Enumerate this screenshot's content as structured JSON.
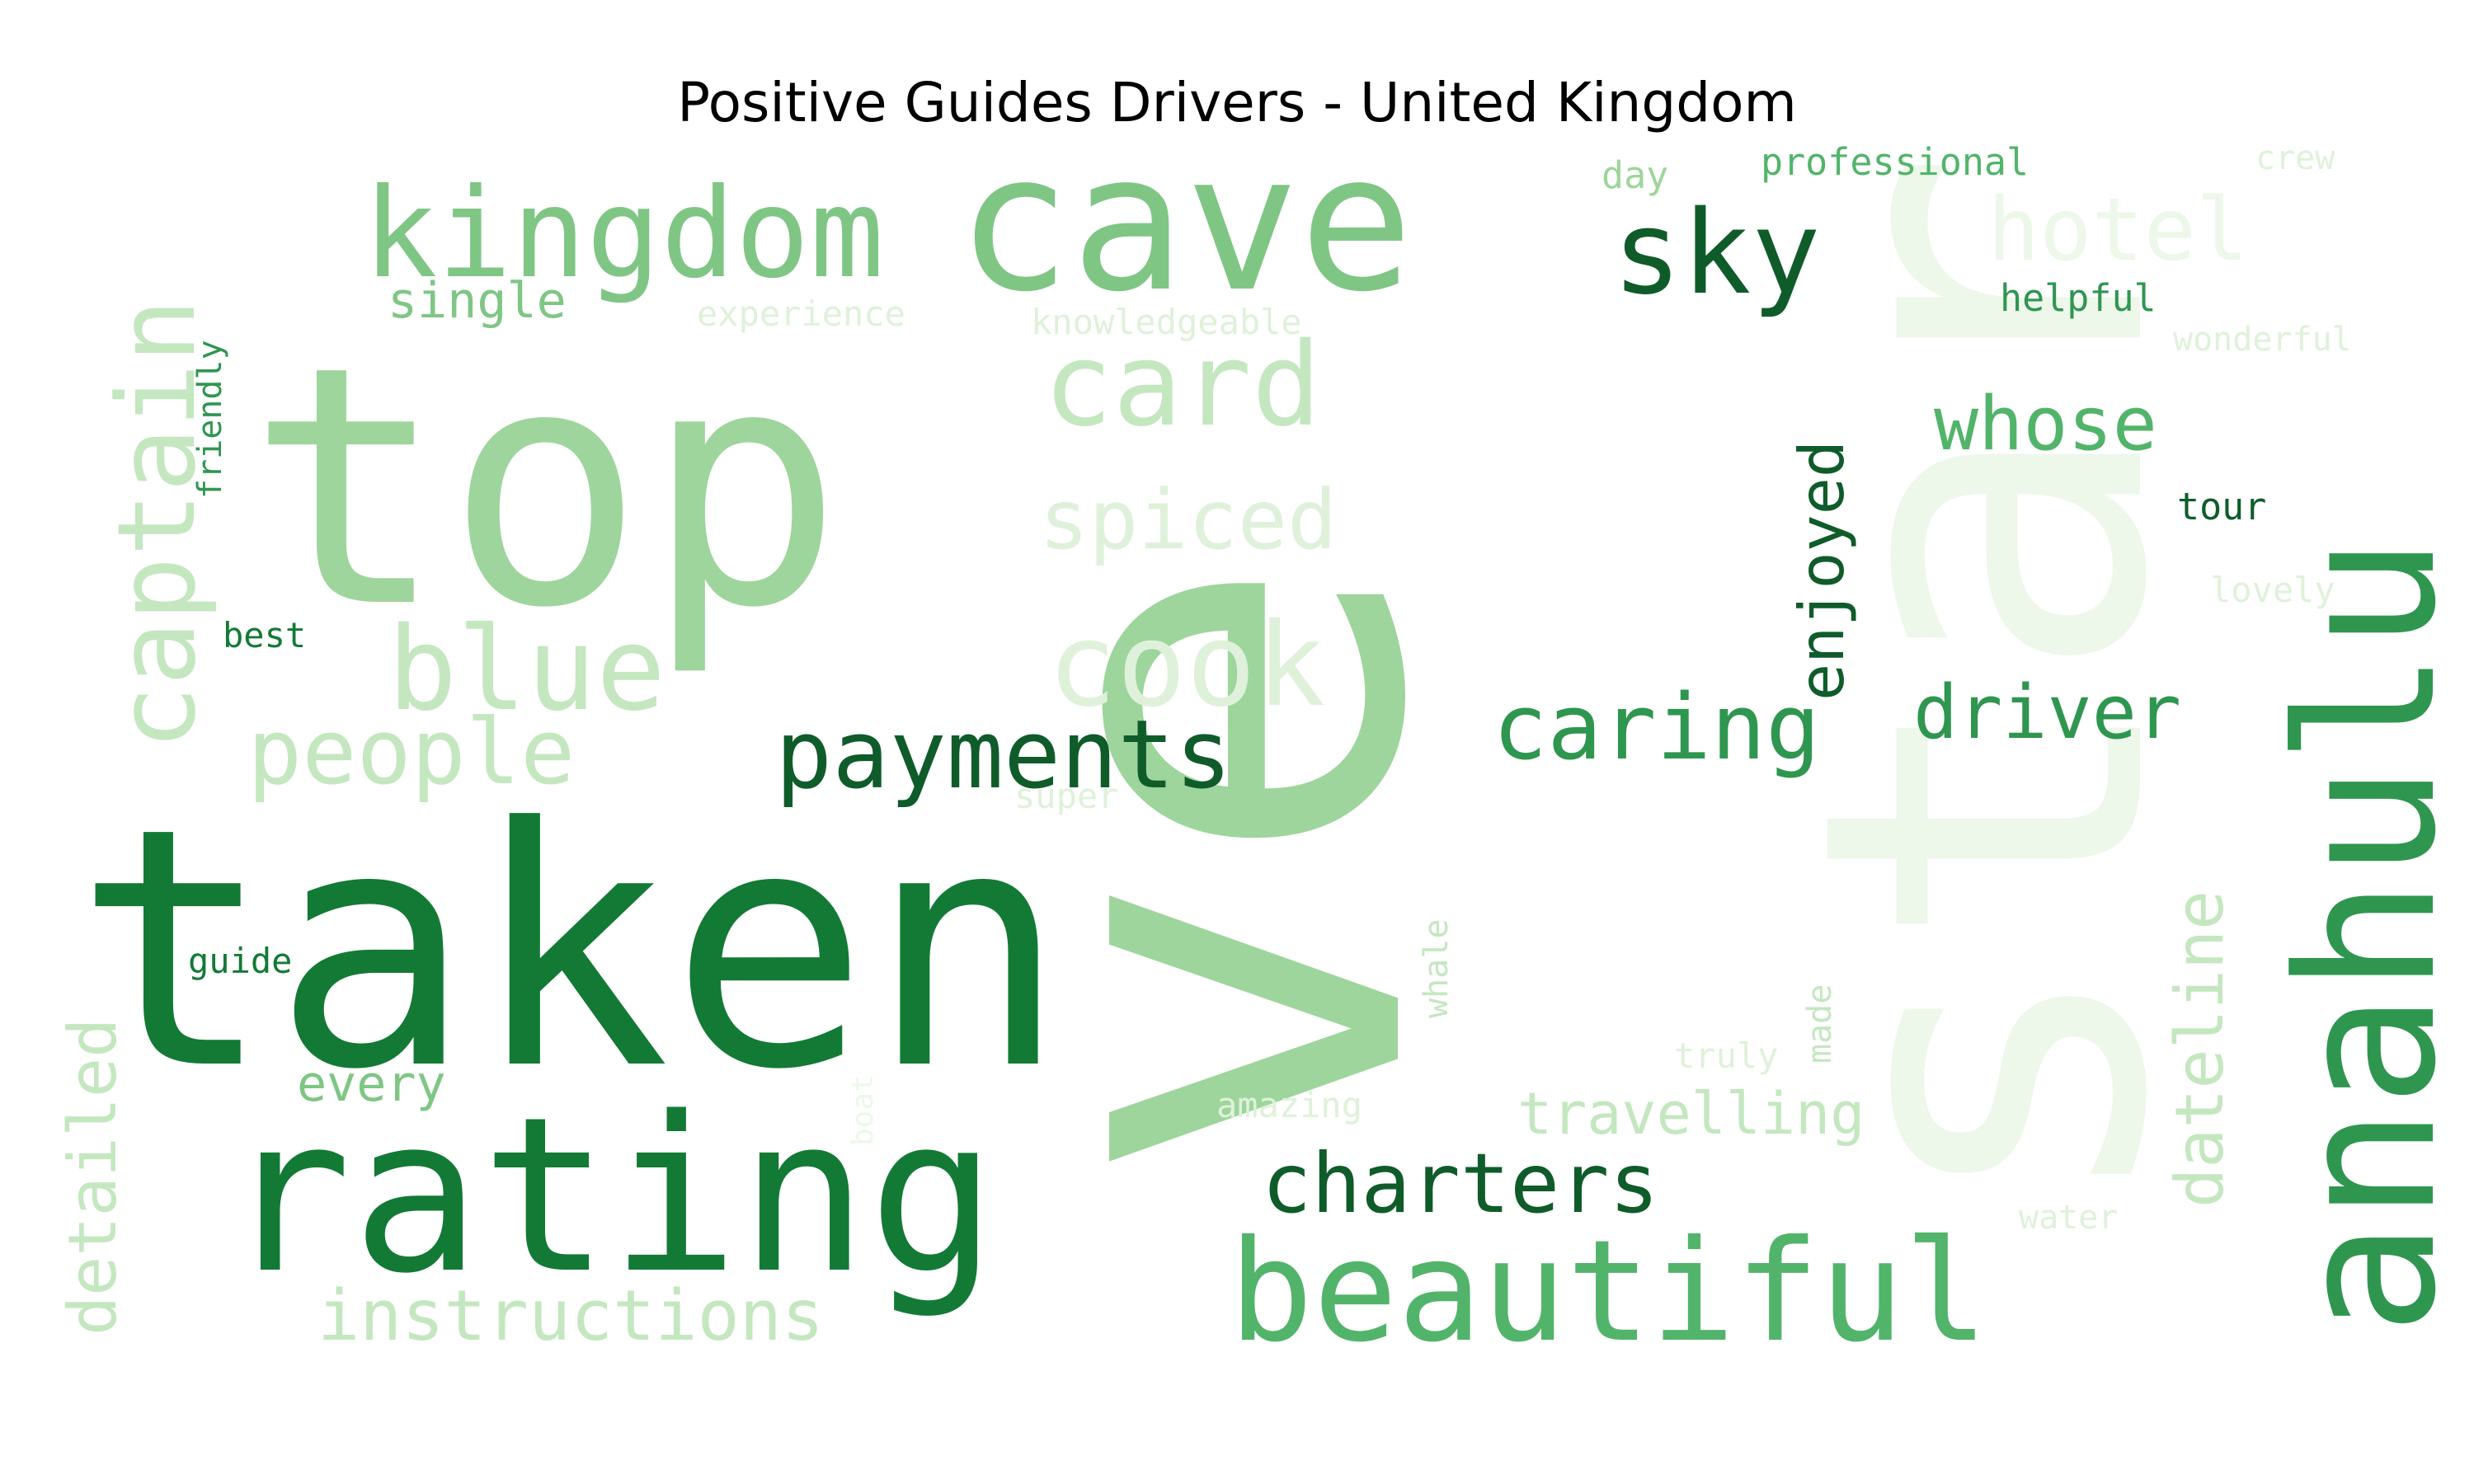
{
  "title": "Positive Guides Drivers - United Kingdom",
  "palette": {
    "g9": "#0f5c2a",
    "g8": "#137a36",
    "g7": "#2f9650",
    "g6": "#52b46a",
    "g5": "#7fc685",
    "g4": "#9ed59c",
    "g3": "#c4e7c0",
    "g2": "#dff1da",
    "g1": "#edf7ea"
  },
  "words": [
    {
      "text": "taken",
      "color": "g8"
    },
    {
      "text": "ve",
      "color": "g4"
    },
    {
      "text": "top",
      "color": "g4"
    },
    {
      "text": "cave",
      "color": "g5"
    },
    {
      "text": "star",
      "color": "g1"
    },
    {
      "text": "anahulu",
      "color": "g7"
    },
    {
      "text": "rating",
      "color": "g8"
    },
    {
      "text": "beautiful",
      "color": "g6"
    },
    {
      "text": "kingdom",
      "color": "g5"
    },
    {
      "text": "captain",
      "color": "g3"
    },
    {
      "text": "payments",
      "color": "g9"
    },
    {
      "text": "charters",
      "color": "g9"
    },
    {
      "text": "sky",
      "color": "g9"
    },
    {
      "text": "caring",
      "color": "g7"
    },
    {
      "text": "blue",
      "color": "g3"
    },
    {
      "text": "cook",
      "color": "g2"
    },
    {
      "text": "card",
      "color": "g3"
    },
    {
      "text": "spiced",
      "color": "g2"
    },
    {
      "text": "hotel",
      "color": "g1"
    },
    {
      "text": "people",
      "color": "g3"
    },
    {
      "text": "driver",
      "color": "g7"
    },
    {
      "text": "whose",
      "color": "g6"
    },
    {
      "text": "enjoyed",
      "color": "g9"
    },
    {
      "text": "dateline",
      "color": "g3"
    },
    {
      "text": "detailed",
      "color": "g3"
    },
    {
      "text": "instructions",
      "color": "g3"
    },
    {
      "text": "travelling",
      "color": "g3"
    },
    {
      "text": "single",
      "color": "g5"
    },
    {
      "text": "every",
      "color": "g5"
    },
    {
      "text": "friendly",
      "color": "g7"
    },
    {
      "text": "professional",
      "color": "g6"
    },
    {
      "text": "helpful",
      "color": "g7"
    },
    {
      "text": "tour",
      "color": "g9"
    },
    {
      "text": "day",
      "color": "g4"
    },
    {
      "text": "crew",
      "color": "g2"
    },
    {
      "text": "wonderful",
      "color": "g2"
    },
    {
      "text": "lovely",
      "color": "g2"
    },
    {
      "text": "best",
      "color": "g8"
    },
    {
      "text": "guide",
      "color": "g8"
    },
    {
      "text": "experience",
      "color": "g2"
    },
    {
      "text": "knowledgeable",
      "color": "g2"
    },
    {
      "text": "super",
      "color": "g2"
    },
    {
      "text": "whale",
      "color": "g3"
    },
    {
      "text": "made",
      "color": "g3"
    },
    {
      "text": "truly",
      "color": "g2"
    },
    {
      "text": "amazing",
      "color": "g2"
    },
    {
      "text": "boat",
      "color": "g1"
    },
    {
      "text": "water",
      "color": "g2"
    }
  ]
}
